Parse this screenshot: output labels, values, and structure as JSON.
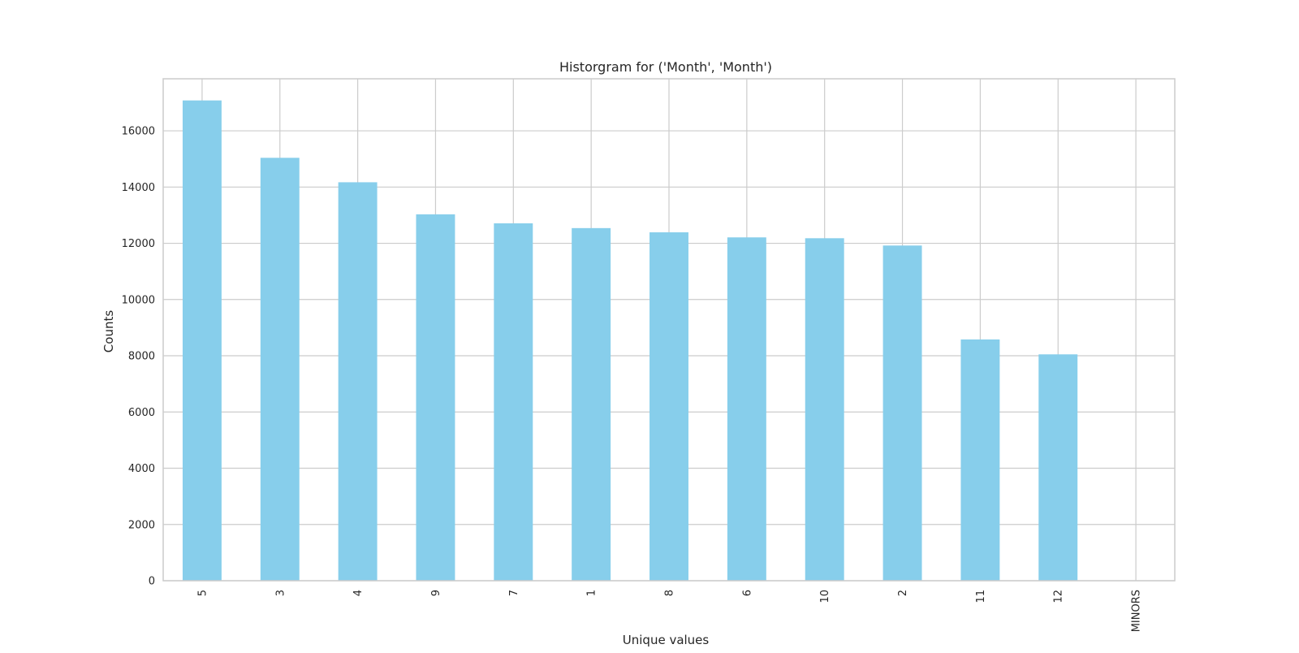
{
  "chart_data": {
    "type": "bar",
    "title": "Historgram for ('Month', 'Month')",
    "xlabel": "Unique values",
    "ylabel": "Counts",
    "categories": [
      "5",
      "3",
      "4",
      "9",
      "7",
      "1",
      "8",
      "6",
      "10",
      "2",
      "11",
      "12",
      "MINORS"
    ],
    "values": [
      17080,
      15040,
      14170,
      13030,
      12710,
      12540,
      12390,
      12210,
      12180,
      11920,
      8580,
      8050,
      0
    ],
    "ylim": [
      0,
      17850
    ],
    "yticks": [
      0,
      2000,
      4000,
      6000,
      8000,
      10000,
      12000,
      14000,
      16000
    ],
    "ytick_labels": [
      "0",
      "2000",
      "4000",
      "6000",
      "8000",
      "10000",
      "12000",
      "14000",
      "16000"
    ],
    "grid": true,
    "colors": {
      "bar": "#87ceeb",
      "grid": "#cccccc",
      "frame": "#cccccc"
    }
  }
}
